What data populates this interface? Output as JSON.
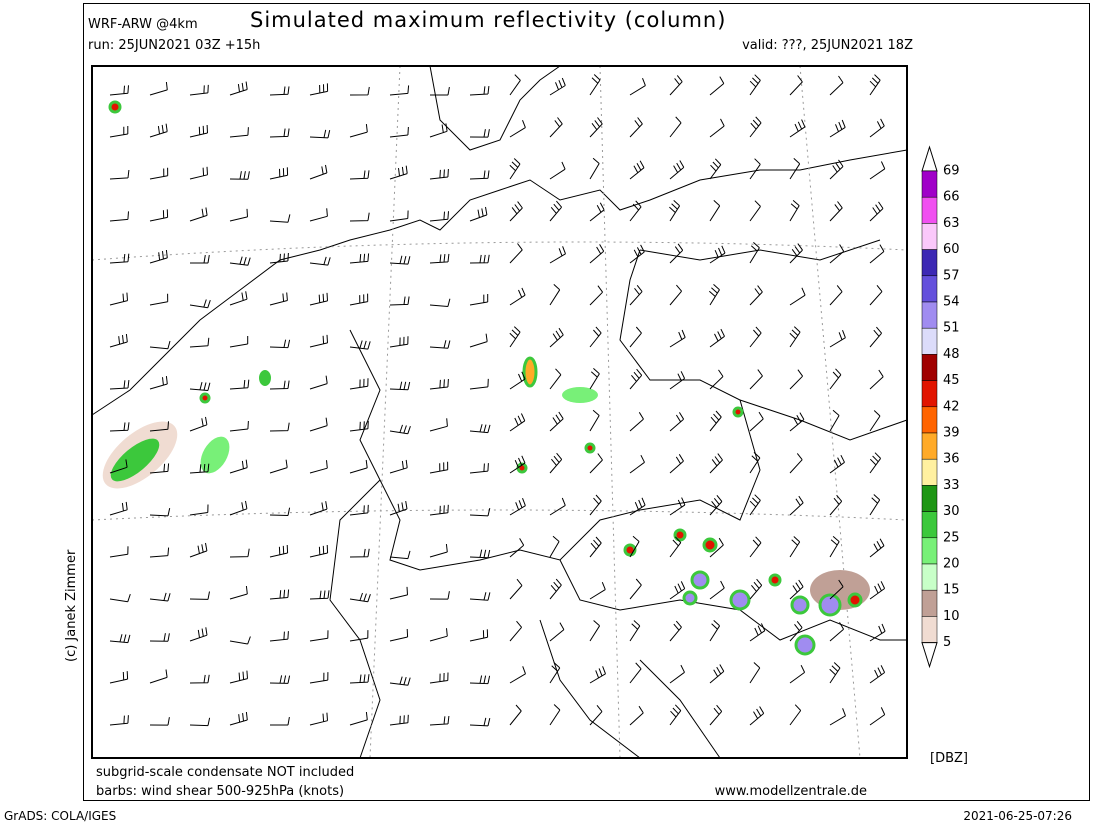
{
  "header": {
    "model": "WRF-ARW @4km",
    "title": "Simulated maximum reflectivity (column)",
    "run": "run: 25JUN2021 03Z +15h",
    "valid": "valid: ???, 25JUN2021 18Z"
  },
  "credit": "(c) Janek Zimmer",
  "notes": {
    "line1": "subgrid-scale condensate NOT included",
    "line2": "barbs: wind shear 500-925hPa (knots)",
    "url": "www.modellzentrale.de"
  },
  "colorbar": {
    "unit": "[DBZ]",
    "levels": [
      69,
      66,
      63,
      60,
      57,
      54,
      51,
      48,
      45,
      42,
      39,
      36,
      33,
      30,
      25,
      20,
      15,
      10,
      5
    ],
    "colors": [
      "#a000c8",
      "#f050f0",
      "#fac8fa",
      "#3c28b4",
      "#6450dc",
      "#a08cf0",
      "#dcdcfa",
      "#a00000",
      "#e11400",
      "#ff6400",
      "#ffaa28",
      "#fff0a0",
      "#1e9614",
      "#3cc83c",
      "#78f078",
      "#c8ffc8",
      "#c0a096",
      "#f0dcd2"
    ]
  },
  "footer": {
    "software": "GrADS: COLA/IGES",
    "timestamp": "2021-06-25-07:26"
  }
}
